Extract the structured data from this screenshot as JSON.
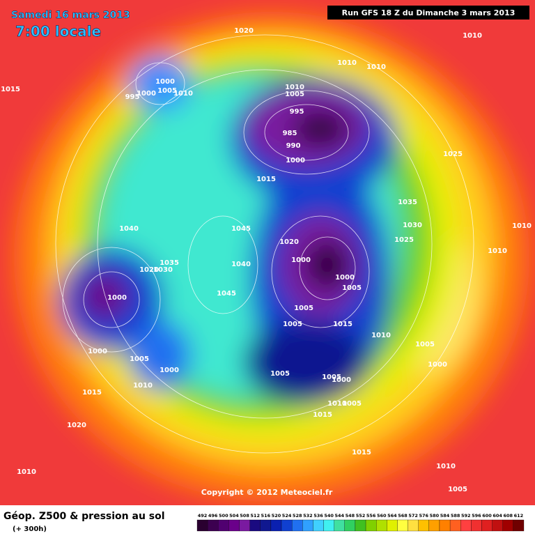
{
  "header": {
    "date": "Samedi 16 mars 2013",
    "time": "7:00 locale",
    "run": "Run GFS 18 Z du Dimanche 3 mars 2013"
  },
  "copyright": "Copyright © 2012 Meteociel.fr",
  "footer": {
    "title": "Géop. Z500 & pression au sol",
    "subtitle": "(+ 300h)"
  },
  "pressure_labels": [
    1020,
    1010,
    1010,
    1010,
    1015,
    1000,
    1005,
    1010,
    1000,
    995,
    1010,
    1005,
    995,
    985,
    990,
    1000,
    1025,
    1015,
    1035,
    1030,
    1040,
    1045,
    1025,
    1010,
    1010,
    1020,
    1000,
    1035,
    1020,
    1030,
    1040,
    1000,
    1005,
    1045,
    1000,
    1005,
    1005,
    1015,
    1010,
    1005,
    1000,
    1005,
    1000,
    1000,
    1005,
    1005,
    1000,
    1010,
    1015,
    1010,
    1005,
    1015,
    1020,
    1015,
    1010,
    1010,
    1005
  ],
  "legend": {
    "values": [
      492,
      496,
      500,
      504,
      508,
      512,
      516,
      520,
      524,
      528,
      532,
      536,
      540,
      544,
      548,
      552,
      556,
      560,
      564,
      568,
      572,
      576,
      580,
      584,
      588,
      592,
      596,
      600,
      604,
      608,
      612
    ],
    "colors": [
      "#2a0030",
      "#3c0050",
      "#500070",
      "#6a008a",
      "#7a1aa0",
      "#1a0a80",
      "#101890",
      "#0a20b0",
      "#1040d0",
      "#2070f0",
      "#30a0ff",
      "#40d0ff",
      "#40f0f0",
      "#40e0a0",
      "#30d060",
      "#40c020",
      "#80d000",
      "#b0e000",
      "#e0f000",
      "#ffff40",
      "#ffe040",
      "#ffc000",
      "#ffa000",
      "#ff8000",
      "#ff6020",
      "#ff4040",
      "#f03030",
      "#e02020",
      "#c01010",
      "#a00000",
      "#700000"
    ]
  }
}
